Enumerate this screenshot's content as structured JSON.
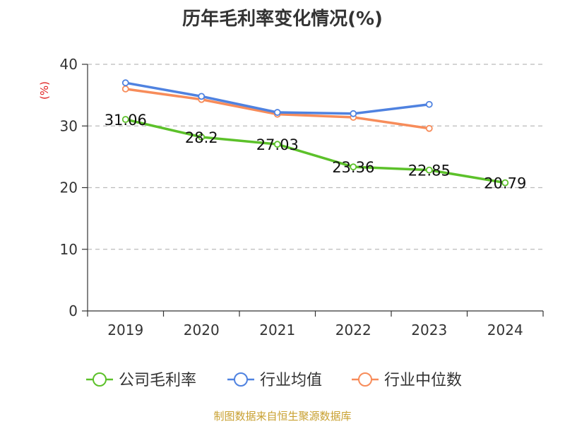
{
  "colors": {
    "company": "#5cc12a",
    "industry_avg": "#4f82e0",
    "industry_median": "#f78c5a",
    "unit_label": "#e02020",
    "source_note": "#c8a030",
    "grid": "#bbbbbb",
    "axis": "#333333"
  },
  "source_note": "制图数据来自恒生聚源数据库",
  "chart_data": {
    "type": "line",
    "title": "历年毛利率变化情况(%)",
    "ylabel": "(%)",
    "xlabel": "",
    "categories": [
      "2019",
      "2020",
      "2021",
      "2022",
      "2023",
      "2024"
    ],
    "ylim": [
      0,
      40
    ],
    "yticks": [
      0,
      10,
      20,
      30,
      40
    ],
    "grid": "horizontal-dashed",
    "legend_position": "bottom",
    "series": [
      {
        "name": "公司毛利率",
        "color_key": "company",
        "values": [
          31.06,
          28.2,
          27.03,
          23.36,
          22.85,
          20.79
        ],
        "labels": [
          "31.06",
          "28.2",
          "27.03",
          "23.36",
          "22.85",
          "20.79"
        ]
      },
      {
        "name": "行业均值",
        "color_key": "industry_avg",
        "values": [
          37.0,
          34.8,
          32.2,
          32.0,
          33.5,
          null
        ],
        "labels": null
      },
      {
        "name": "行业中位数",
        "color_key": "industry_median",
        "values": [
          36.0,
          34.3,
          31.9,
          31.4,
          29.6,
          null
        ],
        "labels": null
      }
    ]
  }
}
